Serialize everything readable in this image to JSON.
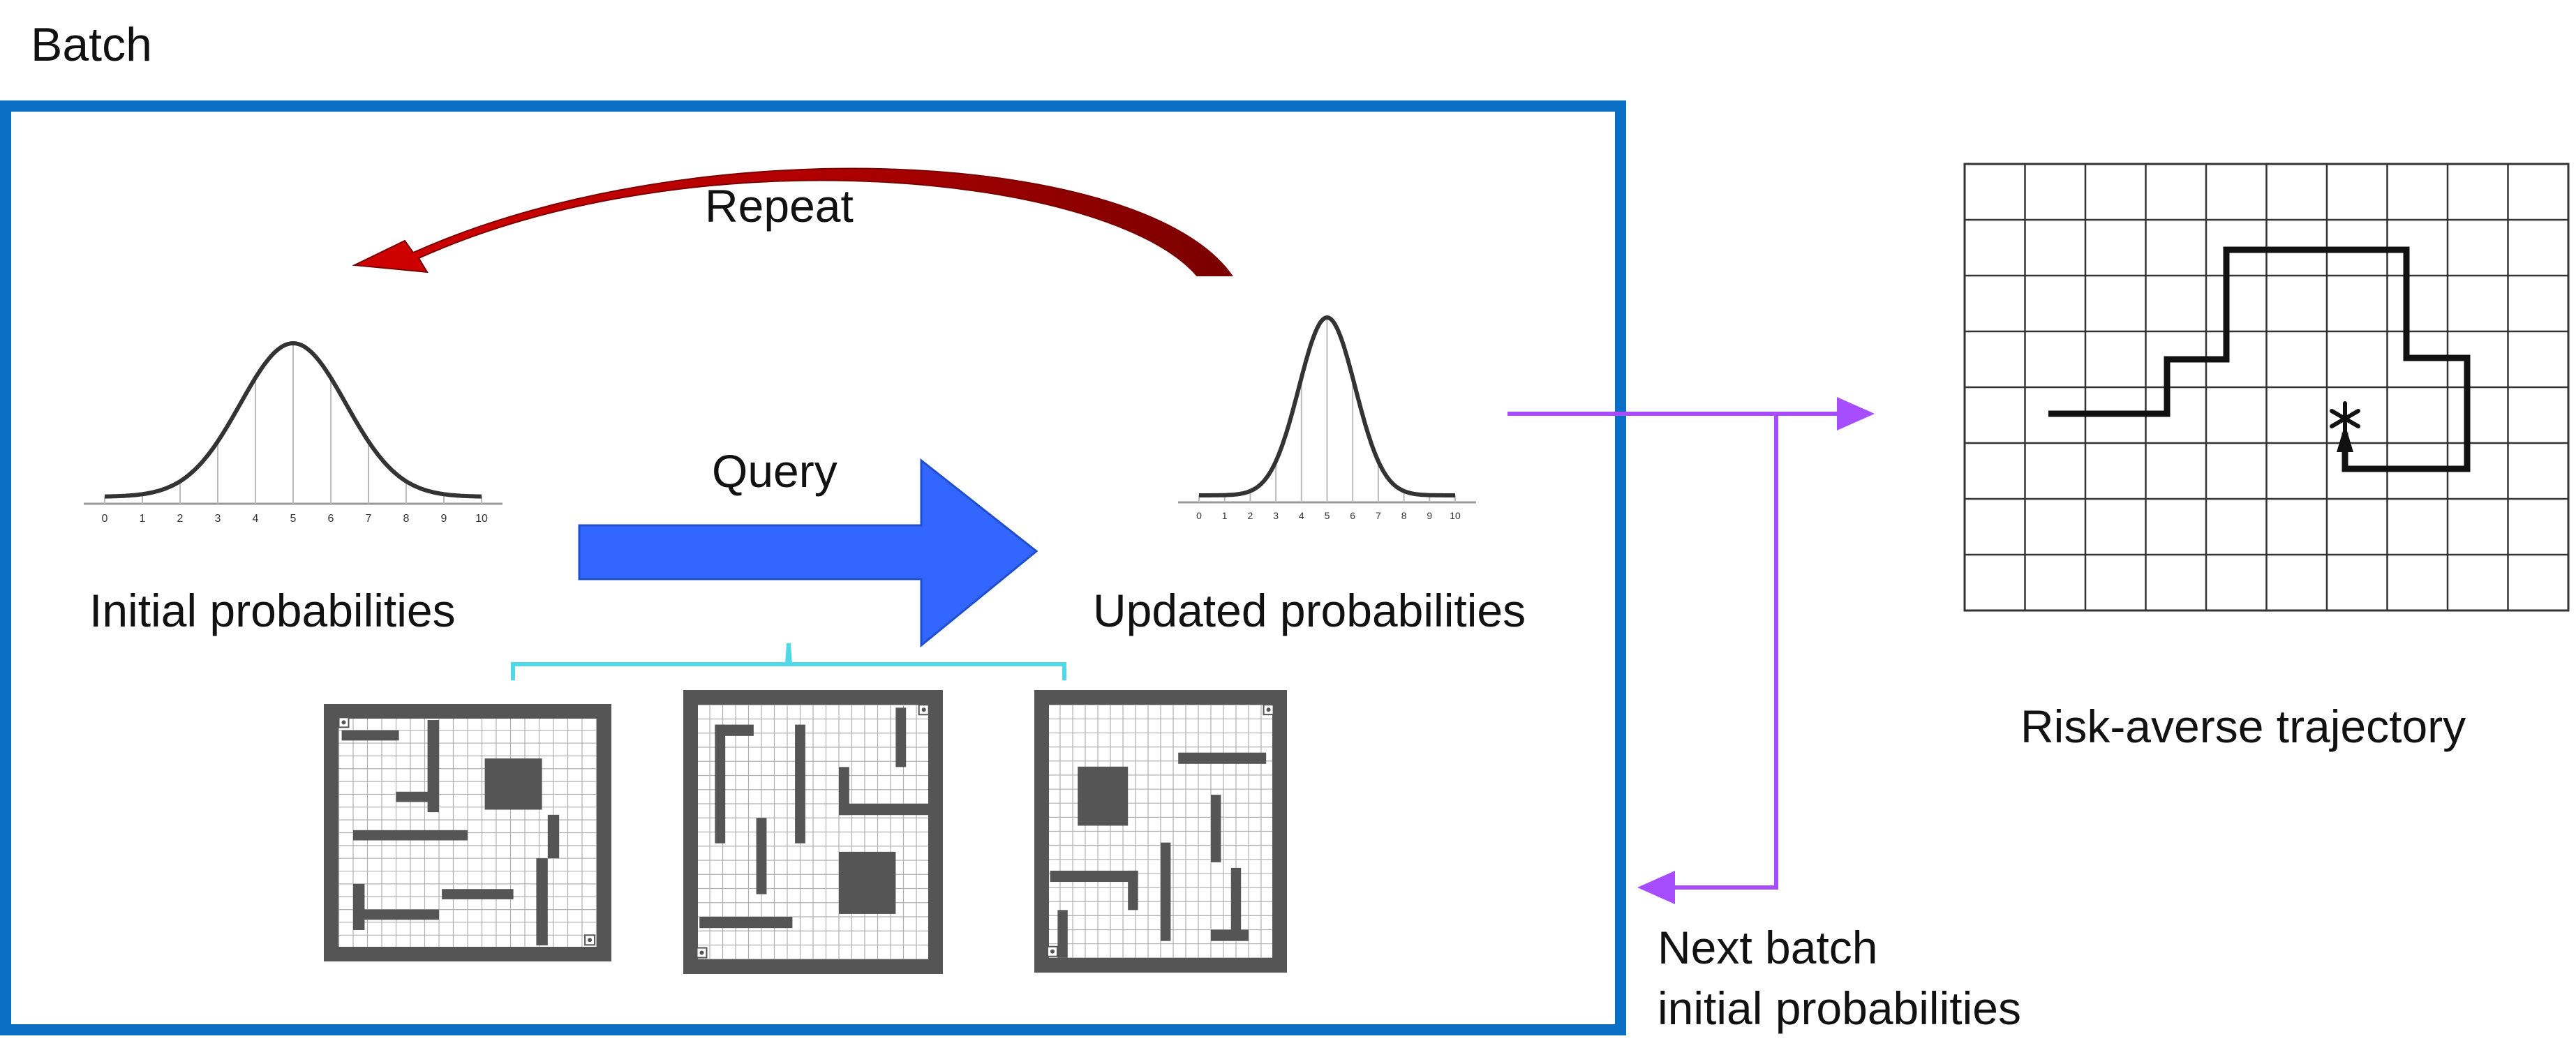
{
  "labels": {
    "batch": "Batch",
    "repeat": "Repeat",
    "query": "Query",
    "initial": "Initial probabilities",
    "updated": "Updated probabilities",
    "risk": "Risk-averse trajectory",
    "next_line1": "Next batch",
    "next_line2": "initial probabilities"
  },
  "tick_labels": [
    "0",
    "1",
    "2",
    "3",
    "4",
    "5",
    "6",
    "7",
    "8",
    "9",
    "10"
  ],
  "colors": {
    "batch_border": "#0a6fc4",
    "repeat_arrow": "#b30000",
    "query_arrow": "#3366ff",
    "brace": "#4fd8e6",
    "feedback": "#a64dff",
    "maze_wall": "#555555",
    "grid_line": "#b0b0b0"
  },
  "icons": [
    "star-goal-icon",
    "start-arrow-icon"
  ]
}
